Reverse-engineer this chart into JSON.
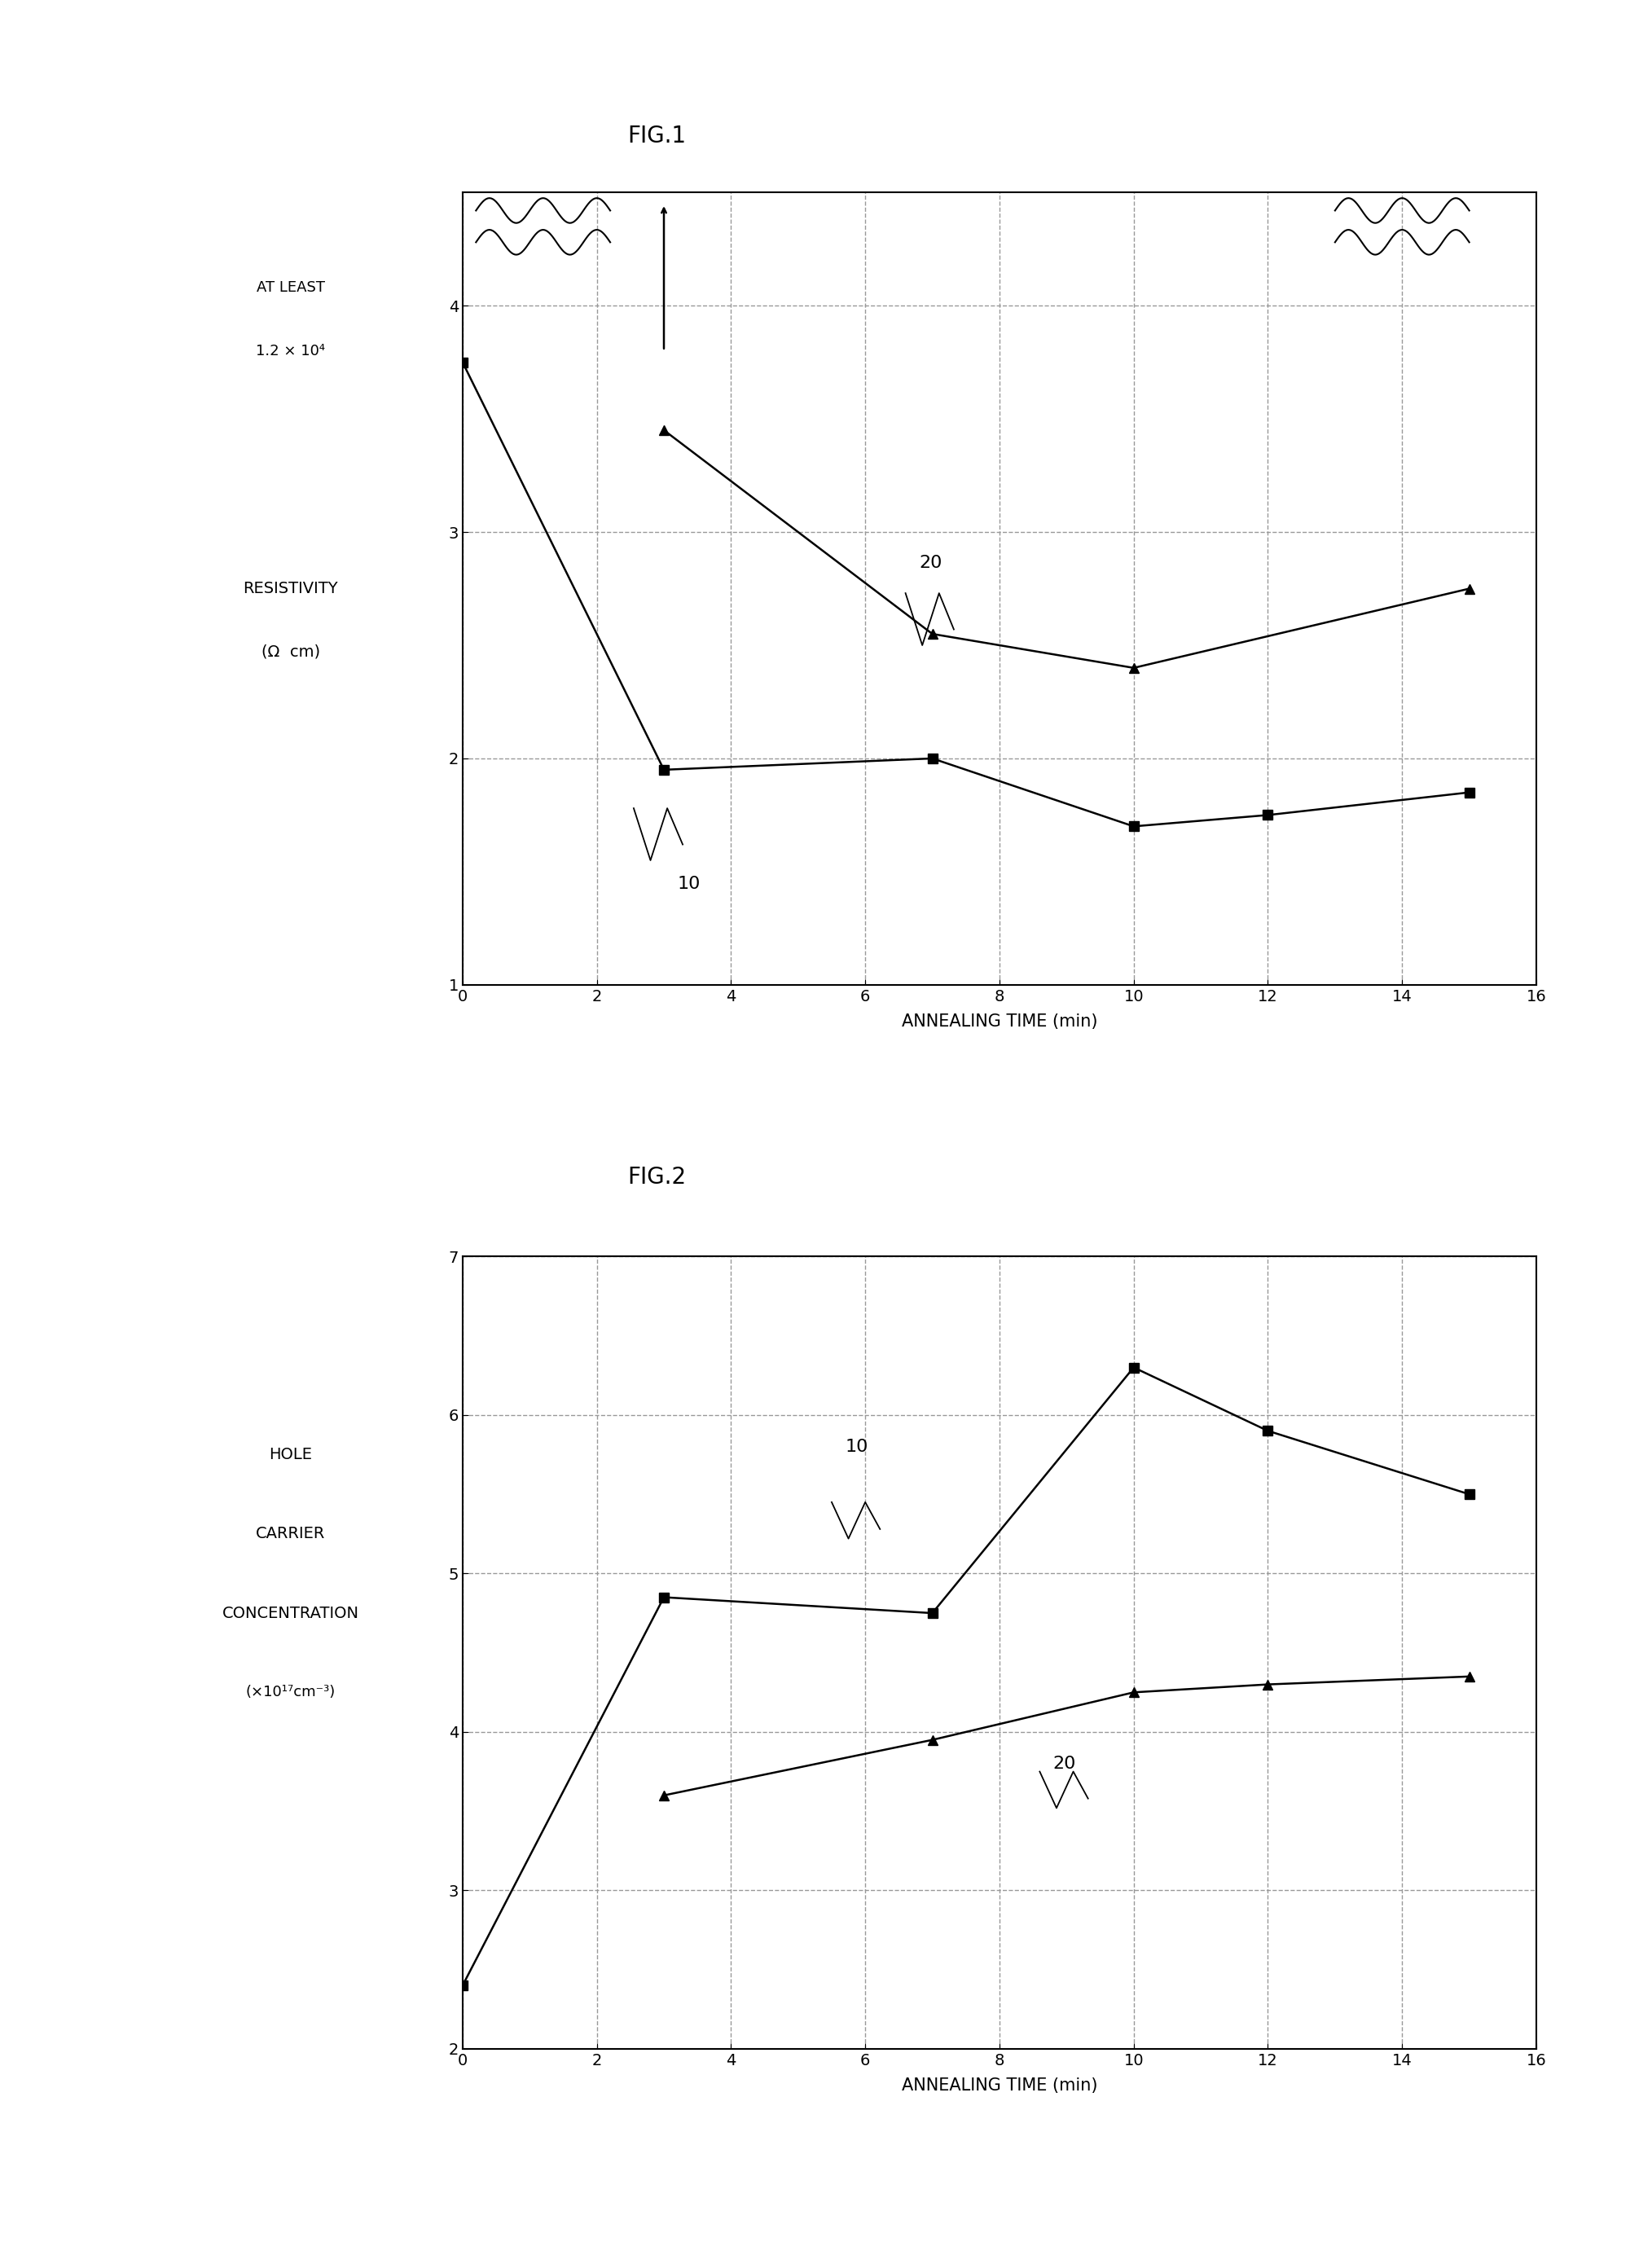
{
  "fig1_title": "FIG.1",
  "fig2_title": "FIG.2",
  "fig1_xlabel": "ANNEALING TIME (min)",
  "fig1_ylabel1": "RESISTIVITY",
  "fig1_ylabel2": "(Ω  cm)",
  "fig2_xlabel": "ANNEALING TIME (min)",
  "fig2_ylabel1": "HOLE",
  "fig2_ylabel2": "CARRIER",
  "fig2_ylabel3": "CONCENTRATION",
  "fig2_ylabel4": "(×10¹⁷cm⁻³)",
  "fig1_series10_x": [
    0,
    3,
    7,
    10,
    12,
    15
  ],
  "fig1_series10_y": [
    3.75,
    1.95,
    2.0,
    1.7,
    1.75,
    1.85
  ],
  "fig1_series20_x": [
    3,
    7,
    10,
    15
  ],
  "fig1_series20_y": [
    3.45,
    2.55,
    2.4,
    2.75
  ],
  "fig1_ylim": [
    1.0,
    4.5
  ],
  "fig1_xlim": [
    0,
    16
  ],
  "fig1_yticks": [
    1,
    2,
    3,
    4
  ],
  "fig1_xticks": [
    0,
    2,
    4,
    6,
    8,
    10,
    12,
    14,
    16
  ],
  "fig1_at_least_line1": "AT LEAST",
  "fig1_at_least_line2": "1.2 × 10⁴",
  "fig2_series10_x": [
    0,
    3,
    7,
    10,
    12,
    15
  ],
  "fig2_series10_y": [
    2.4,
    4.85,
    4.75,
    6.3,
    5.9,
    5.5
  ],
  "fig2_series20_x": [
    3,
    7,
    10,
    12,
    15
  ],
  "fig2_series20_y": [
    3.6,
    3.95,
    4.25,
    4.3,
    4.35
  ],
  "fig2_ylim": [
    2.0,
    7.0
  ],
  "fig2_xlim": [
    0,
    16
  ],
  "fig2_yticks": [
    2.0,
    3.0,
    4.0,
    5.0,
    6.0,
    7.0
  ],
  "fig2_xticks": [
    0,
    2,
    4,
    6,
    8,
    10,
    12,
    14,
    16
  ],
  "background_color": "#ffffff",
  "line_color": "#000000",
  "grid_color": "#999999"
}
